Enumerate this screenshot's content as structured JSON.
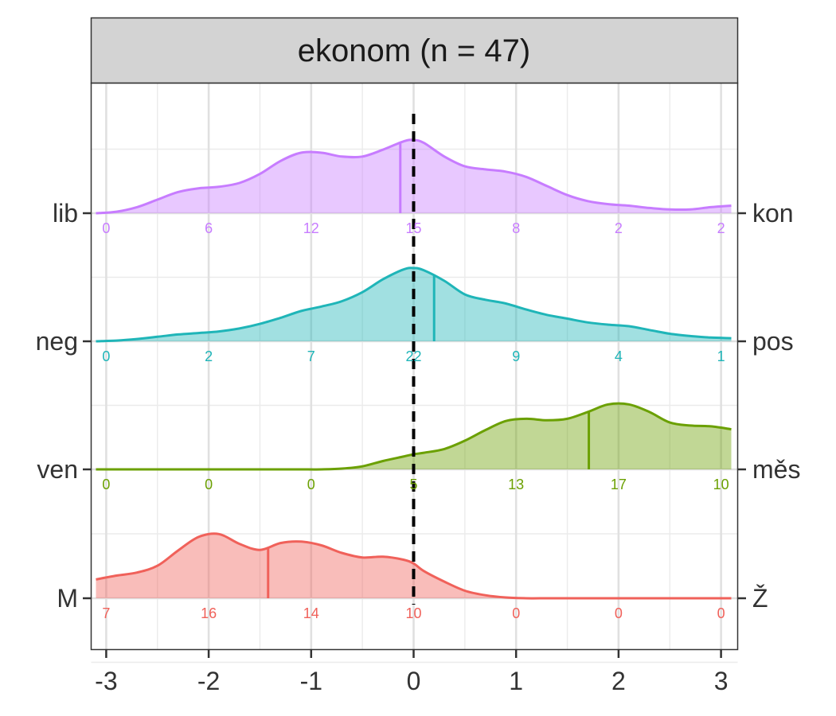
{
  "chart_data": {
    "type": "ridgeline",
    "title": "ekonom (n = 47)",
    "xlim": [
      -3.1,
      3.1
    ],
    "x_ticks": [
      -3,
      -2,
      -1,
      0,
      1,
      2,
      3
    ],
    "x_tick_labels": [
      "-3",
      "-2",
      "-1",
      "0",
      "1",
      "2",
      "3"
    ],
    "reference_line_x": 0,
    "series": [
      {
        "left_label": "lib",
        "right_label": "kon",
        "color": "#C77CFF",
        "mean": -0.13,
        "count_labels": [
          "0",
          "6",
          "12",
          "15",
          "8",
          "2",
          "2"
        ],
        "density_x": [
          -3.1,
          -2.9,
          -2.7,
          -2.5,
          -2.3,
          -2.1,
          -1.9,
          -1.7,
          -1.5,
          -1.3,
          -1.1,
          -0.9,
          -0.7,
          -0.5,
          -0.3,
          -0.1,
          0,
          0.1,
          0.3,
          0.5,
          0.7,
          0.9,
          1.1,
          1.3,
          1.5,
          1.7,
          1.9,
          2.1,
          2.3,
          2.5,
          2.7,
          2.9,
          3.1
        ],
        "density_y": [
          0.0,
          0.02,
          0.08,
          0.18,
          0.28,
          0.33,
          0.35,
          0.4,
          0.52,
          0.69,
          0.8,
          0.8,
          0.75,
          0.75,
          0.84,
          0.95,
          0.97,
          0.93,
          0.75,
          0.62,
          0.58,
          0.55,
          0.48,
          0.36,
          0.24,
          0.16,
          0.12,
          0.1,
          0.07,
          0.05,
          0.05,
          0.08,
          0.1
        ]
      },
      {
        "left_label": "neg",
        "right_label": "pos",
        "color": "#1FB5B8",
        "mean": 0.2,
        "count_labels": [
          "0",
          "2",
          "7",
          "22",
          "9",
          "4",
          "1"
        ],
        "density_x": [
          -3.1,
          -2.9,
          -2.7,
          -2.5,
          -2.3,
          -2.1,
          -1.9,
          -1.7,
          -1.5,
          -1.3,
          -1.1,
          -0.9,
          -0.7,
          -0.5,
          -0.3,
          -0.1,
          0,
          0.1,
          0.3,
          0.5,
          0.7,
          0.9,
          1.1,
          1.3,
          1.5,
          1.7,
          1.9,
          2.1,
          2.3,
          2.5,
          2.7,
          2.9,
          3.1
        ],
        "density_y": [
          0.0,
          0.01,
          0.03,
          0.06,
          0.09,
          0.11,
          0.13,
          0.17,
          0.23,
          0.31,
          0.4,
          0.46,
          0.53,
          0.65,
          0.82,
          0.95,
          0.97,
          0.94,
          0.8,
          0.62,
          0.55,
          0.5,
          0.42,
          0.35,
          0.3,
          0.25,
          0.22,
          0.2,
          0.15,
          0.1,
          0.07,
          0.05,
          0.04
        ]
      },
      {
        "left_label": "ven",
        "right_label": "měs",
        "color": "#6BA002",
        "mean": 1.71,
        "count_labels": [
          "0",
          "0",
          "0",
          "5",
          "13",
          "17",
          "10"
        ],
        "density_x": [
          -3.1,
          -2.9,
          -2.7,
          -2.5,
          -2.3,
          -2.1,
          -1.9,
          -1.7,
          -1.5,
          -1.3,
          -1.1,
          -0.9,
          -0.7,
          -0.5,
          -0.3,
          -0.1,
          0,
          0.1,
          0.3,
          0.5,
          0.7,
          0.9,
          1.1,
          1.3,
          1.5,
          1.7,
          1.9,
          2.1,
          2.3,
          2.5,
          2.7,
          2.9,
          3.1
        ],
        "density_y": [
          0.0,
          0.0,
          0.0,
          0.0,
          0.0,
          0.0,
          0.0,
          0.0,
          0.0,
          0.0,
          0.0,
          0.0,
          0.01,
          0.04,
          0.11,
          0.17,
          0.2,
          0.22,
          0.27,
          0.38,
          0.52,
          0.64,
          0.67,
          0.65,
          0.67,
          0.76,
          0.86,
          0.86,
          0.76,
          0.62,
          0.58,
          0.57,
          0.53
        ]
      },
      {
        "left_label": "M",
        "right_label": "Ž",
        "color": "#F0615A",
        "mean": -1.42,
        "count_labels": [
          "7",
          "16",
          "14",
          "10",
          "0",
          "0",
          "0"
        ],
        "density_x": [
          -3.1,
          -2.9,
          -2.7,
          -2.5,
          -2.3,
          -2.1,
          -1.9,
          -1.7,
          -1.5,
          -1.3,
          -1.1,
          -0.9,
          -0.7,
          -0.5,
          -0.3,
          -0.1,
          0,
          0.1,
          0.3,
          0.5,
          0.7,
          0.9,
          1.1,
          1.3,
          1.5,
          1.7,
          1.9,
          2.1,
          2.3,
          2.5,
          2.7,
          2.9,
          3.1
        ],
        "density_y": [
          0.25,
          0.3,
          0.34,
          0.43,
          0.63,
          0.81,
          0.85,
          0.72,
          0.64,
          0.73,
          0.75,
          0.7,
          0.6,
          0.54,
          0.55,
          0.51,
          0.46,
          0.36,
          0.22,
          0.1,
          0.04,
          0.01,
          0.0,
          0.0,
          0.0,
          0.0,
          0.0,
          0.0,
          0.0,
          0.0,
          0.0,
          0.0,
          0.0
        ]
      }
    ]
  }
}
